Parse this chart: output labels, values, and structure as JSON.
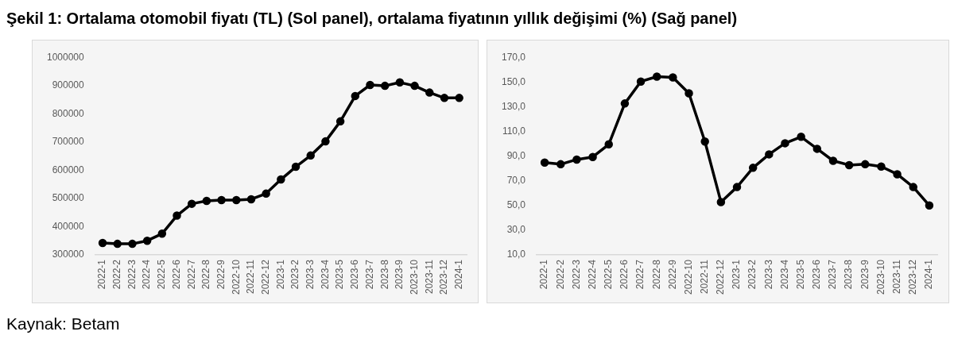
{
  "chart_data": [
    {
      "type": "line",
      "title": "Şekil 1: Ortalama otomobil fiyatı (TL) (Sol panel), ortalama fiyatının yıllık değişimi (%) (Sağ panel)",
      "annotations": [
        "Kaynak: Betam"
      ],
      "categories": [
        "2022-1",
        "2022-2",
        "2022-3",
        "2022-4",
        "2022-5",
        "2022-6",
        "2022-7",
        "2022-8",
        "2022-9",
        "2022-10",
        "2022-11",
        "2022-12",
        "2023-1",
        "2023-2",
        "2023-3",
        "2023-4",
        "2023-5",
        "2023-6",
        "2023-7",
        "2023-8",
        "2023-9",
        "2023-10",
        "2023-11",
        "2023-12",
        "2024-1"
      ],
      "series": [
        {
          "color": "#000000",
          "values": [
            342000,
            339000,
            339000,
            350000,
            375000,
            439000,
            481000,
            491000,
            494000,
            494000,
            497000,
            517000,
            567000,
            612000,
            652000,
            702000,
            773000,
            863000,
            902000,
            899000,
            911000,
            899000,
            875000,
            856000,
            856000
          ]
        }
      ],
      "ylim": [
        300000,
        1000000
      ],
      "yticks": [
        300000,
        400000,
        500000,
        600000,
        700000,
        800000,
        900000,
        1000000
      ],
      "grid": false,
      "legend": false,
      "marker": "circle",
      "line_style": "solid"
    },
    {
      "type": "line",
      "categories": [
        "2022-1",
        "2022-2",
        "2022-3",
        "2022-4",
        "2022-5",
        "2022-6",
        "2022-7",
        "2022-8",
        "2022-9",
        "2022-10",
        "2022-11",
        "2022-12",
        "2023-1",
        "2023-2",
        "2023-3",
        "2023-4",
        "2023-5",
        "2023-6",
        "2023-7",
        "2023-8",
        "2023-9",
        "2023-10",
        "2023-11",
        "2023-12",
        "2024-1"
      ],
      "series": [
        {
          "color": "#000000",
          "values": [
            84.8,
            83.4,
            87.2,
            89.3,
            99.5,
            132.6,
            150.4,
            154.4,
            153.7,
            140.9,
            101.8,
            52.8,
            64.9,
            80.5,
            91.4,
            100.4,
            105.6,
            95.9,
            86.2,
            82.7,
            83.4,
            81.5,
            75.3,
            64.9,
            50.0
          ]
        }
      ],
      "ylim": [
        10,
        170
      ],
      "yticks": [
        {
          "value": 10,
          "label": "10,0"
        },
        {
          "value": 30,
          "label": "30,0"
        },
        {
          "value": 50,
          "label": "50,0"
        },
        {
          "value": 70,
          "label": "70,0"
        },
        {
          "value": 90,
          "label": "90,0"
        },
        {
          "value": 110,
          "label": "110,0"
        },
        {
          "value": 130,
          "label": "130,0"
        },
        {
          "value": 150,
          "label": "150,0"
        },
        {
          "value": 170,
          "label": "170,0"
        }
      ],
      "grid": false,
      "legend": false,
      "marker": "circle",
      "line_style": "solid"
    }
  ]
}
